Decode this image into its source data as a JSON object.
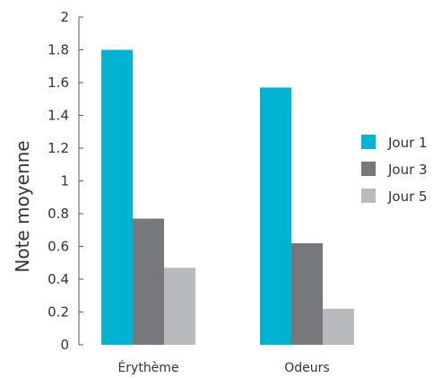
{
  "chart_data": {
    "type": "bar",
    "title": "",
    "xlabel": "",
    "ylabel": "Note moyenne",
    "categories": [
      "Érythème",
      "Odeurs"
    ],
    "series": [
      {
        "name": "Jour 1",
        "color": "#00B3D2",
        "values": [
          1.8,
          1.57
        ]
      },
      {
        "name": "Jour 3",
        "color": "#77787C",
        "values": [
          0.77,
          0.62
        ]
      },
      {
        "name": "Jour 5",
        "color": "#B9BABC",
        "values": [
          0.47,
          0.22
        ]
      }
    ],
    "ylim": [
      0,
      2
    ],
    "yticks": [
      "0",
      "0.2",
      "0.4",
      "0.6",
      "0.8",
      "1",
      "1.2",
      "1.4",
      "1.6",
      "1.8",
      "2"
    ],
    "grid": false,
    "legend_position": "right"
  }
}
